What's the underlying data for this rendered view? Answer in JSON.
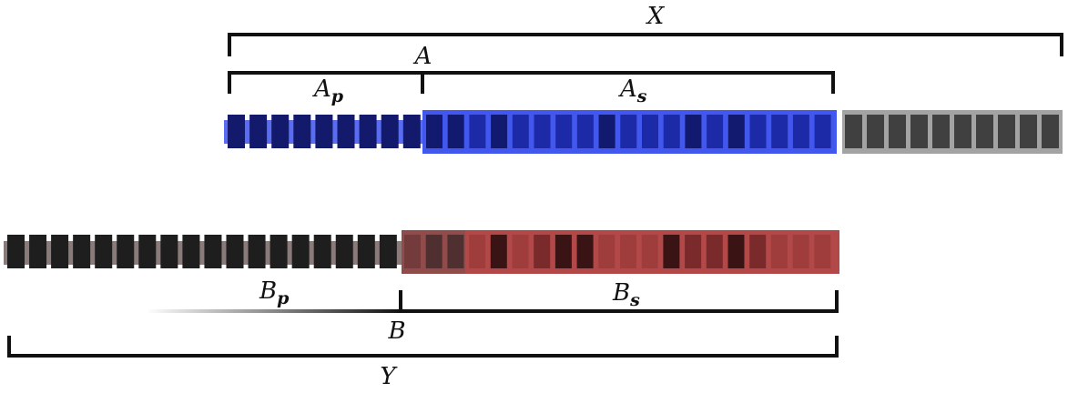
{
  "labels": {
    "X": "X",
    "A": "A",
    "Ap_base": "A",
    "Ap_sub": "p",
    "As_base": "A",
    "As_sub": "s",
    "Bp_base": "B",
    "Bp_sub": "p",
    "Bs_base": "B",
    "Bs_sub": "s",
    "B": "B",
    "Y": "Y"
  },
  "colors": {
    "bracket": "#111111",
    "a_prefix_block": "#131a6b",
    "a_prefix_band": "#5a6cf0",
    "a_suffix_band": "#4257ee",
    "a_suffix_dark": "#111a6e",
    "a_suffix_mid": "#1c2aa8",
    "gray_band": "#a3a3a3",
    "gray_block": "#404040",
    "b_prefix_block": "#1e1e1e",
    "b_prefix_band": "#8a7a7a",
    "b_suffix_band": "#b34848",
    "b_suffix_dark": "#3a1414",
    "b_suffix_mid": "#7a2a2a"
  },
  "strip_a": {
    "prefix_blocks": 9,
    "suffix_block_shades": [
      "dark",
      "dark",
      "mid",
      "dark",
      "mid",
      "mid",
      "mid",
      "mid",
      "dark",
      "mid",
      "mid",
      "mid",
      "dark",
      "mid",
      "dark",
      "mid",
      "mid",
      "mid",
      "mid"
    ],
    "gray_blocks": 10
  },
  "strip_b": {
    "prefix_blocks": 18,
    "suffix_block_shades": [
      "mid",
      "dark",
      "dark",
      "light",
      "dark",
      "light",
      "mid",
      "dark",
      "dark",
      "light",
      "light",
      "light",
      "dark",
      "mid",
      "mid",
      "dark",
      "mid",
      "light",
      "light",
      "light"
    ]
  }
}
